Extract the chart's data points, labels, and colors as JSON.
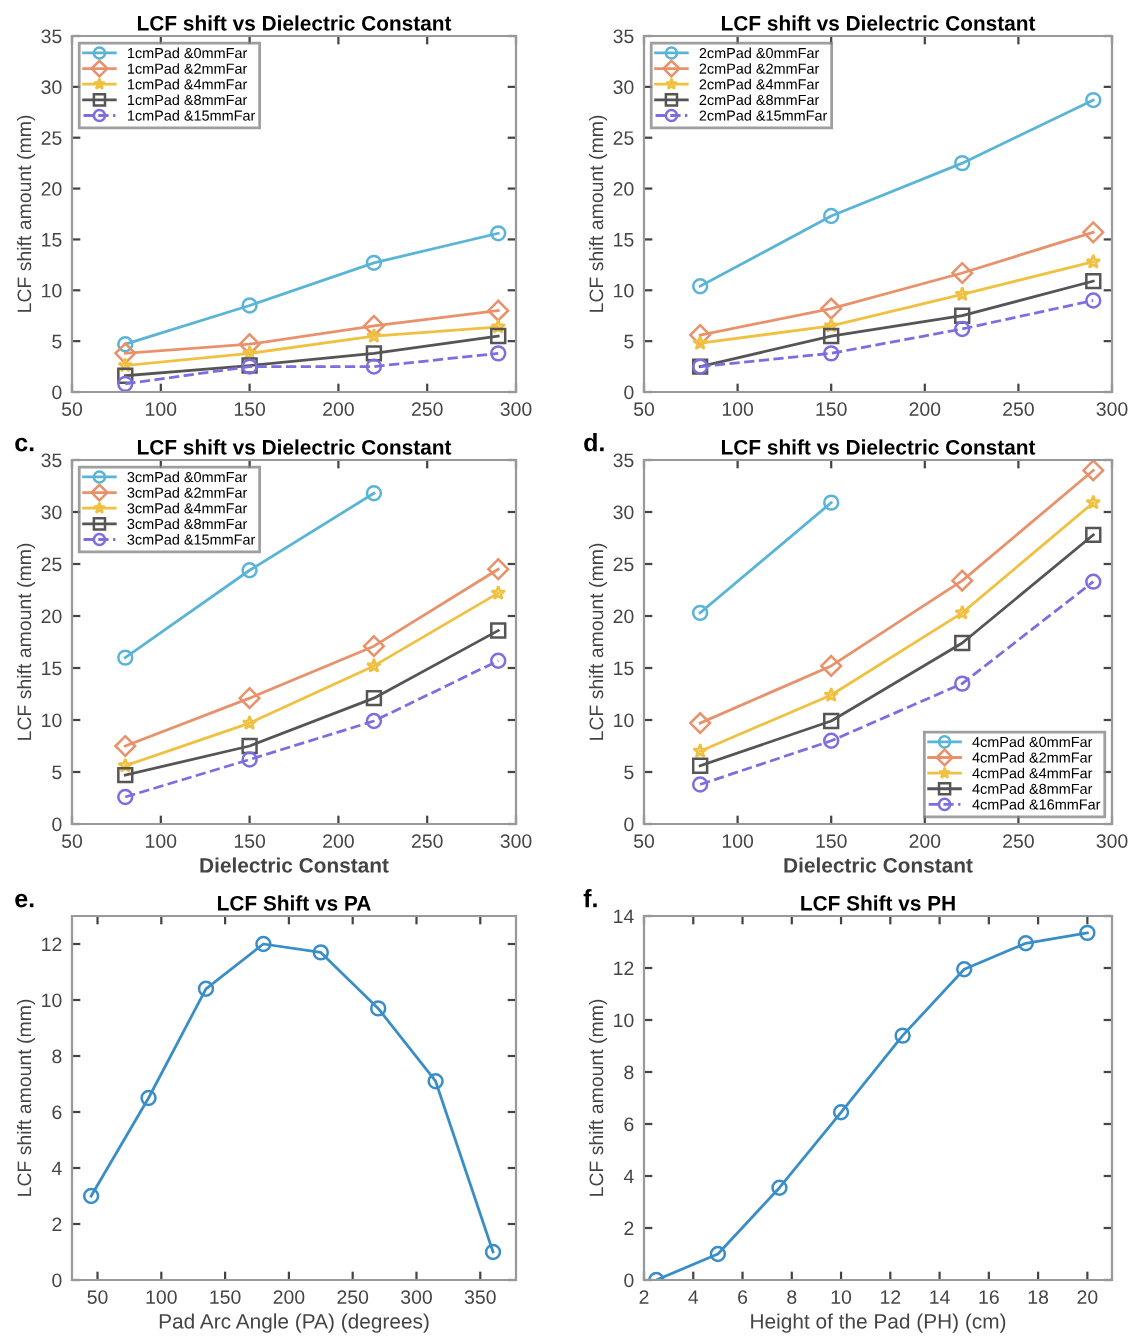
{
  "chart_data": [
    {
      "type": "line",
      "title": "LCF shift vs Dielectric Constant",
      "ylabel": "LCF shift amount (mm)",
      "x": [
        80,
        150,
        220,
        290
      ],
      "xlim": [
        50,
        300
      ],
      "xticks": [
        50,
        100,
        150,
        200,
        250,
        300
      ],
      "ylim": [
        0,
        35
      ],
      "yticks": [
        0,
        5,
        10,
        15,
        20,
        25,
        30,
        35
      ],
      "legend": "top left",
      "series": [
        {
          "name": "1cmPad &0mmFar",
          "color": "#5ab4d6",
          "marker": "circle",
          "line_style": "solid",
          "values": [
            4.7,
            8.5,
            12.7,
            15.6
          ]
        },
        {
          "name": "1cmPad &2mmFar",
          "color": "#e8916b",
          "marker": "diamond",
          "line_style": "solid",
          "values": [
            3.8,
            4.7,
            6.5,
            8.0
          ]
        },
        {
          "name": "1cmPad &4mmFar",
          "color": "#f0c040",
          "marker": "star",
          "line_style": "solid",
          "values": [
            2.6,
            3.8,
            5.5,
            6.4
          ]
        },
        {
          "name": "1cmPad &8mmFar",
          "color": "#555555",
          "marker": "square",
          "line_style": "solid",
          "values": [
            1.6,
            2.6,
            3.8,
            5.5
          ]
        },
        {
          "name": "1cmPad &15mmFar",
          "color": "#7b6fe0",
          "marker": "circle",
          "line_style": "dashed",
          "values": [
            0.8,
            2.5,
            2.5,
            3.8
          ]
        }
      ]
    },
    {
      "type": "line",
      "title": "LCF shift vs Dielectric Constant",
      "ylabel": "LCF shift amount (mm)",
      "x": [
        80,
        150,
        220,
        290
      ],
      "xlim": [
        50,
        300
      ],
      "xticks": [
        50,
        100,
        150,
        200,
        250,
        300
      ],
      "ylim": [
        0,
        35
      ],
      "yticks": [
        0,
        5,
        10,
        15,
        20,
        25,
        30,
        35
      ],
      "legend": "top left",
      "series": [
        {
          "name": "2cmPad &0mmFar",
          "color": "#5ab4d6",
          "marker": "circle",
          "line_style": "solid",
          "values": [
            10.4,
            17.3,
            22.5,
            28.7
          ]
        },
        {
          "name": "2cmPad &2mmFar",
          "color": "#e8916b",
          "marker": "diamond",
          "line_style": "solid",
          "values": [
            5.6,
            8.2,
            11.7,
            15.7
          ]
        },
        {
          "name": "2cmPad &4mmFar",
          "color": "#f0c040",
          "marker": "star",
          "line_style": "solid",
          "values": [
            4.8,
            6.5,
            9.6,
            12.8
          ]
        },
        {
          "name": "2cmPad &8mmFar",
          "color": "#555555",
          "marker": "square",
          "line_style": "solid",
          "values": [
            2.5,
            5.5,
            7.5,
            10.9
          ]
        },
        {
          "name": "2cmPad &15mmFar",
          "color": "#7b6fe0",
          "marker": "circle",
          "line_style": "dashed",
          "values": [
            2.5,
            3.8,
            6.2,
            9.0
          ]
        }
      ]
    },
    {
      "type": "line",
      "title": "LCF shift vs Dielectric Constant",
      "xlabel": "Dielectric Constant",
      "ylabel": "LCF shift amount (mm)",
      "annotations": [
        "c."
      ],
      "x": [
        80,
        150,
        220,
        290
      ],
      "xlim": [
        50,
        300
      ],
      "xticks": [
        50,
        100,
        150,
        200,
        250,
        300
      ],
      "ylim": [
        0,
        35
      ],
      "yticks": [
        0,
        5,
        10,
        15,
        20,
        25,
        30,
        35
      ],
      "legend": "top left",
      "series": [
        {
          "name": "3cmPad &0mmFar",
          "color": "#5ab4d6",
          "marker": "circle",
          "line_style": "solid",
          "values": [
            16.0,
            24.4,
            31.8,
            null
          ]
        },
        {
          "name": "3cmPad &2mmFar",
          "color": "#e8916b",
          "marker": "diamond",
          "line_style": "solid",
          "values": [
            7.5,
            12.1,
            17.1,
            24.5
          ]
        },
        {
          "name": "3cmPad &4mmFar",
          "color": "#f0c040",
          "marker": "star",
          "line_style": "solid",
          "values": [
            5.6,
            9.7,
            15.2,
            22.2
          ]
        },
        {
          "name": "3cmPad &8mmFar",
          "color": "#555555",
          "marker": "square",
          "line_style": "solid",
          "values": [
            4.7,
            7.5,
            12.1,
            18.6
          ]
        },
        {
          "name": "3cmPad &15mmFar",
          "color": "#7b6fe0",
          "marker": "circle",
          "line_style": "dashed",
          "values": [
            2.6,
            6.2,
            9.9,
            15.7
          ]
        }
      ]
    },
    {
      "type": "line",
      "title": "LCF shift vs Dielectric Constant",
      "xlabel": "Dielectric Constant",
      "ylabel": "LCF shift amount (mm)",
      "annotations": [
        "d."
      ],
      "x": [
        80,
        150,
        220,
        290
      ],
      "xlim": [
        50,
        300
      ],
      "xticks": [
        50,
        100,
        150,
        200,
        250,
        300
      ],
      "ylim": [
        0,
        35
      ],
      "yticks": [
        0,
        5,
        10,
        15,
        20,
        25,
        30,
        35
      ],
      "legend": "bottom right",
      "series": [
        {
          "name": "4cmPad &0mmFar",
          "color": "#5ab4d6",
          "marker": "circle",
          "line_style": "solid",
          "values": [
            20.3,
            30.9,
            null,
            null
          ]
        },
        {
          "name": "4cmPad &2mmFar",
          "color": "#e8916b",
          "marker": "diamond",
          "line_style": "solid",
          "values": [
            9.7,
            15.2,
            23.4,
            34.0
          ]
        },
        {
          "name": "4cmPad &4mmFar",
          "color": "#f0c040",
          "marker": "star",
          "line_style": "solid",
          "values": [
            7.0,
            12.4,
            20.3,
            30.9
          ]
        },
        {
          "name": "4cmPad &8mmFar",
          "color": "#555555",
          "marker": "square",
          "line_style": "solid",
          "values": [
            5.6,
            9.9,
            17.4,
            27.8
          ]
        },
        {
          "name": "4cmPad &16mmFar",
          "color": "#7b6fe0",
          "marker": "circle",
          "line_style": "dashed",
          "values": [
            3.8,
            8.0,
            13.5,
            23.3
          ]
        }
      ]
    },
    {
      "type": "line",
      "title": "LCF Shift vs PA",
      "xlabel": "Pad Arc Angle (PA) (degrees)",
      "ylabel": "LCF shift amount (mm)",
      "annotations": [
        "e."
      ],
      "x": [
        45,
        90,
        135,
        180,
        225,
        270,
        315,
        360
      ],
      "xlim": [
        30,
        378
      ],
      "xticks": [
        50,
        100,
        150,
        200,
        250,
        300,
        350
      ],
      "ylim": [
        0,
        13
      ],
      "yticks": [
        0,
        2,
        4,
        6,
        8,
        10,
        12
      ],
      "marker": "circle",
      "series": [
        {
          "color": "#3a8ec8",
          "values": [
            3.0,
            6.5,
            10.4,
            12.0,
            11.7,
            9.7,
            7.1,
            1.0
          ]
        }
      ]
    },
    {
      "type": "line",
      "title": "LCF Shift vs PH",
      "xlabel": "Height of the Pad (PH) (cm)",
      "ylabel": "LCF shift amount (mm)",
      "annotations": [
        "f."
      ],
      "x": [
        2.5,
        5,
        7.5,
        10,
        12.5,
        15,
        17.5,
        20
      ],
      "xlim": [
        2,
        21
      ],
      "xticks": [
        2,
        4,
        6,
        8,
        10,
        12,
        14,
        16,
        18,
        20
      ],
      "ylim": [
        0,
        14
      ],
      "yticks": [
        0,
        2,
        4,
        6,
        8,
        10,
        12,
        14
      ],
      "marker": "circle",
      "series": [
        {
          "color": "#3a8ec8",
          "values": [
            0,
            1.0,
            3.55,
            6.45,
            9.4,
            11.95,
            12.95,
            13.35
          ]
        }
      ]
    }
  ]
}
